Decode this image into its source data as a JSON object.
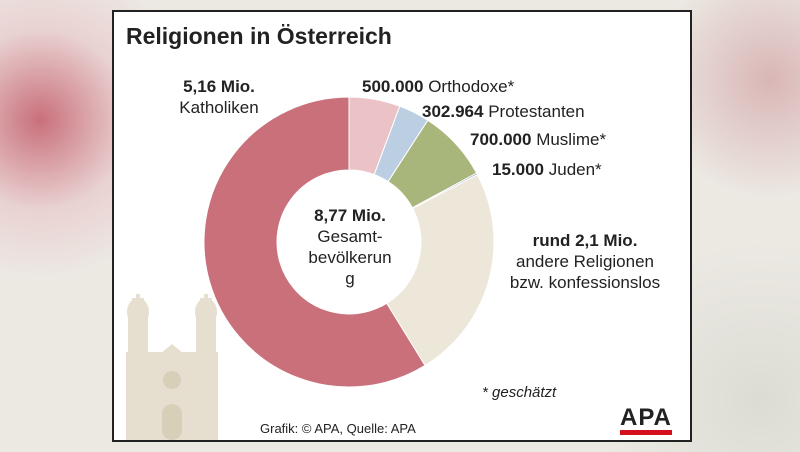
{
  "chart_data": {
    "type": "donut",
    "title": "Religionen in Österreich",
    "center_value": "8,77 Mio.",
    "center_label": "Gesamt-bevölkerung",
    "categories": [
      "Orthodoxe*",
      "Protestanten",
      "Muslime*",
      "Juden*",
      "andere Religionen bzw. konfessionslos",
      "Katholiken"
    ],
    "values": [
      500000,
      302964,
      700000,
      15000,
      2100000,
      5160000
    ],
    "value_labels": [
      "500.000",
      "302.964",
      "700.000",
      "15.000",
      "rund 2,1 Mio.",
      "5,16 Mio."
    ],
    "colors": [
      "#ebc3c7",
      "#bccfe2",
      "#a8b57b",
      "#6f93bd",
      "#ede7da",
      "#c9707b"
    ],
    "note": "* geschätzt",
    "source": "Grafik: © APA, Quelle: APA",
    "logo": "APA"
  }
}
